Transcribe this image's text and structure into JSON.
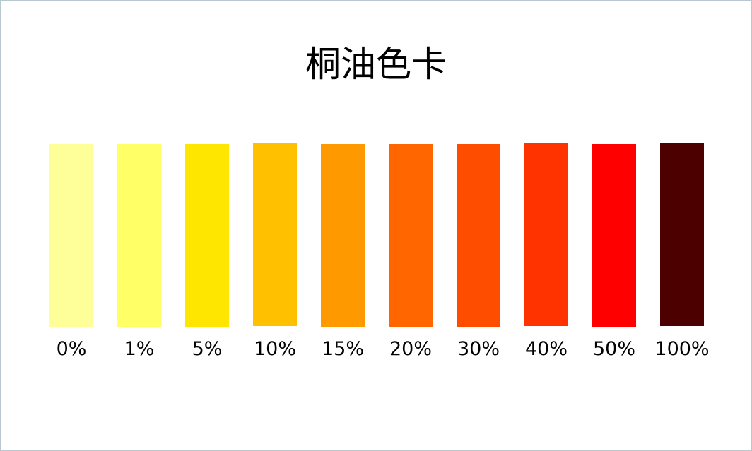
{
  "title": "桐油色卡",
  "swatches": [
    {
      "label": "0%",
      "color": "#FFFF99"
    },
    {
      "label": "1%",
      "color": "#FFFF66"
    },
    {
      "label": "5%",
      "color": "#FFE600"
    },
    {
      "label": "10%",
      "color": "#FFC000"
    },
    {
      "label": "15%",
      "color": "#FF9900"
    },
    {
      "label": "20%",
      "color": "#FF6600"
    },
    {
      "label": "30%",
      "color": "#FF4D00"
    },
    {
      "label": "40%",
      "color": "#FF3300"
    },
    {
      "label": "50%",
      "color": "#FF0000"
    },
    {
      "label": "100%",
      "color": "#4D0000"
    }
  ]
}
